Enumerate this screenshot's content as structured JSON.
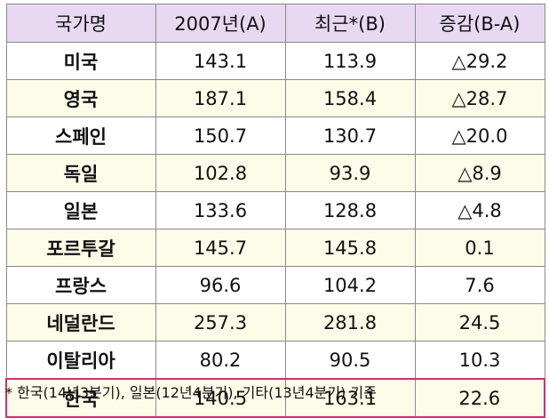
{
  "table": {
    "headers": [
      "국가명",
      "2007년(A)",
      "최근*(B)",
      "증감(B-A)"
    ],
    "rows": [
      {
        "country": "미국",
        "a": "143.1",
        "b": "113.9",
        "diff": "△29.2"
      },
      {
        "country": "영국",
        "a": "187.1",
        "b": "158.4",
        "diff": "△28.7"
      },
      {
        "country": "스페인",
        "a": "150.7",
        "b": "130.7",
        "diff": "△20.0"
      },
      {
        "country": "독일",
        "a": "102.8",
        "b": "93.9",
        "diff": "△8.9"
      },
      {
        "country": "일본",
        "a": "133.6",
        "b": "128.8",
        "diff": "△4.8"
      },
      {
        "country": "포르투갈",
        "a": "145.7",
        "b": "145.8",
        "diff": "0.1"
      },
      {
        "country": "프랑스",
        "a": "96.6",
        "b": "104.2",
        "diff": "7.6"
      },
      {
        "country": "네덜란드",
        "a": "257.3",
        "b": "281.8",
        "diff": "24.5"
      },
      {
        "country": "이탈리아",
        "a": "80.2",
        "b": "90.5",
        "diff": "10.3"
      },
      {
        "country": "한국",
        "a": "140.5",
        "b": "163.1",
        "diff": "22.6"
      }
    ]
  },
  "footnote": "*  한국(14년3분기),  일본(12년4분기),  기타(13년4분기)  기준",
  "colors": {
    "header_bg": "#e9d8f1",
    "alt_row_bg": "#fdfce8",
    "highlight_border": "#cc2f76"
  }
}
